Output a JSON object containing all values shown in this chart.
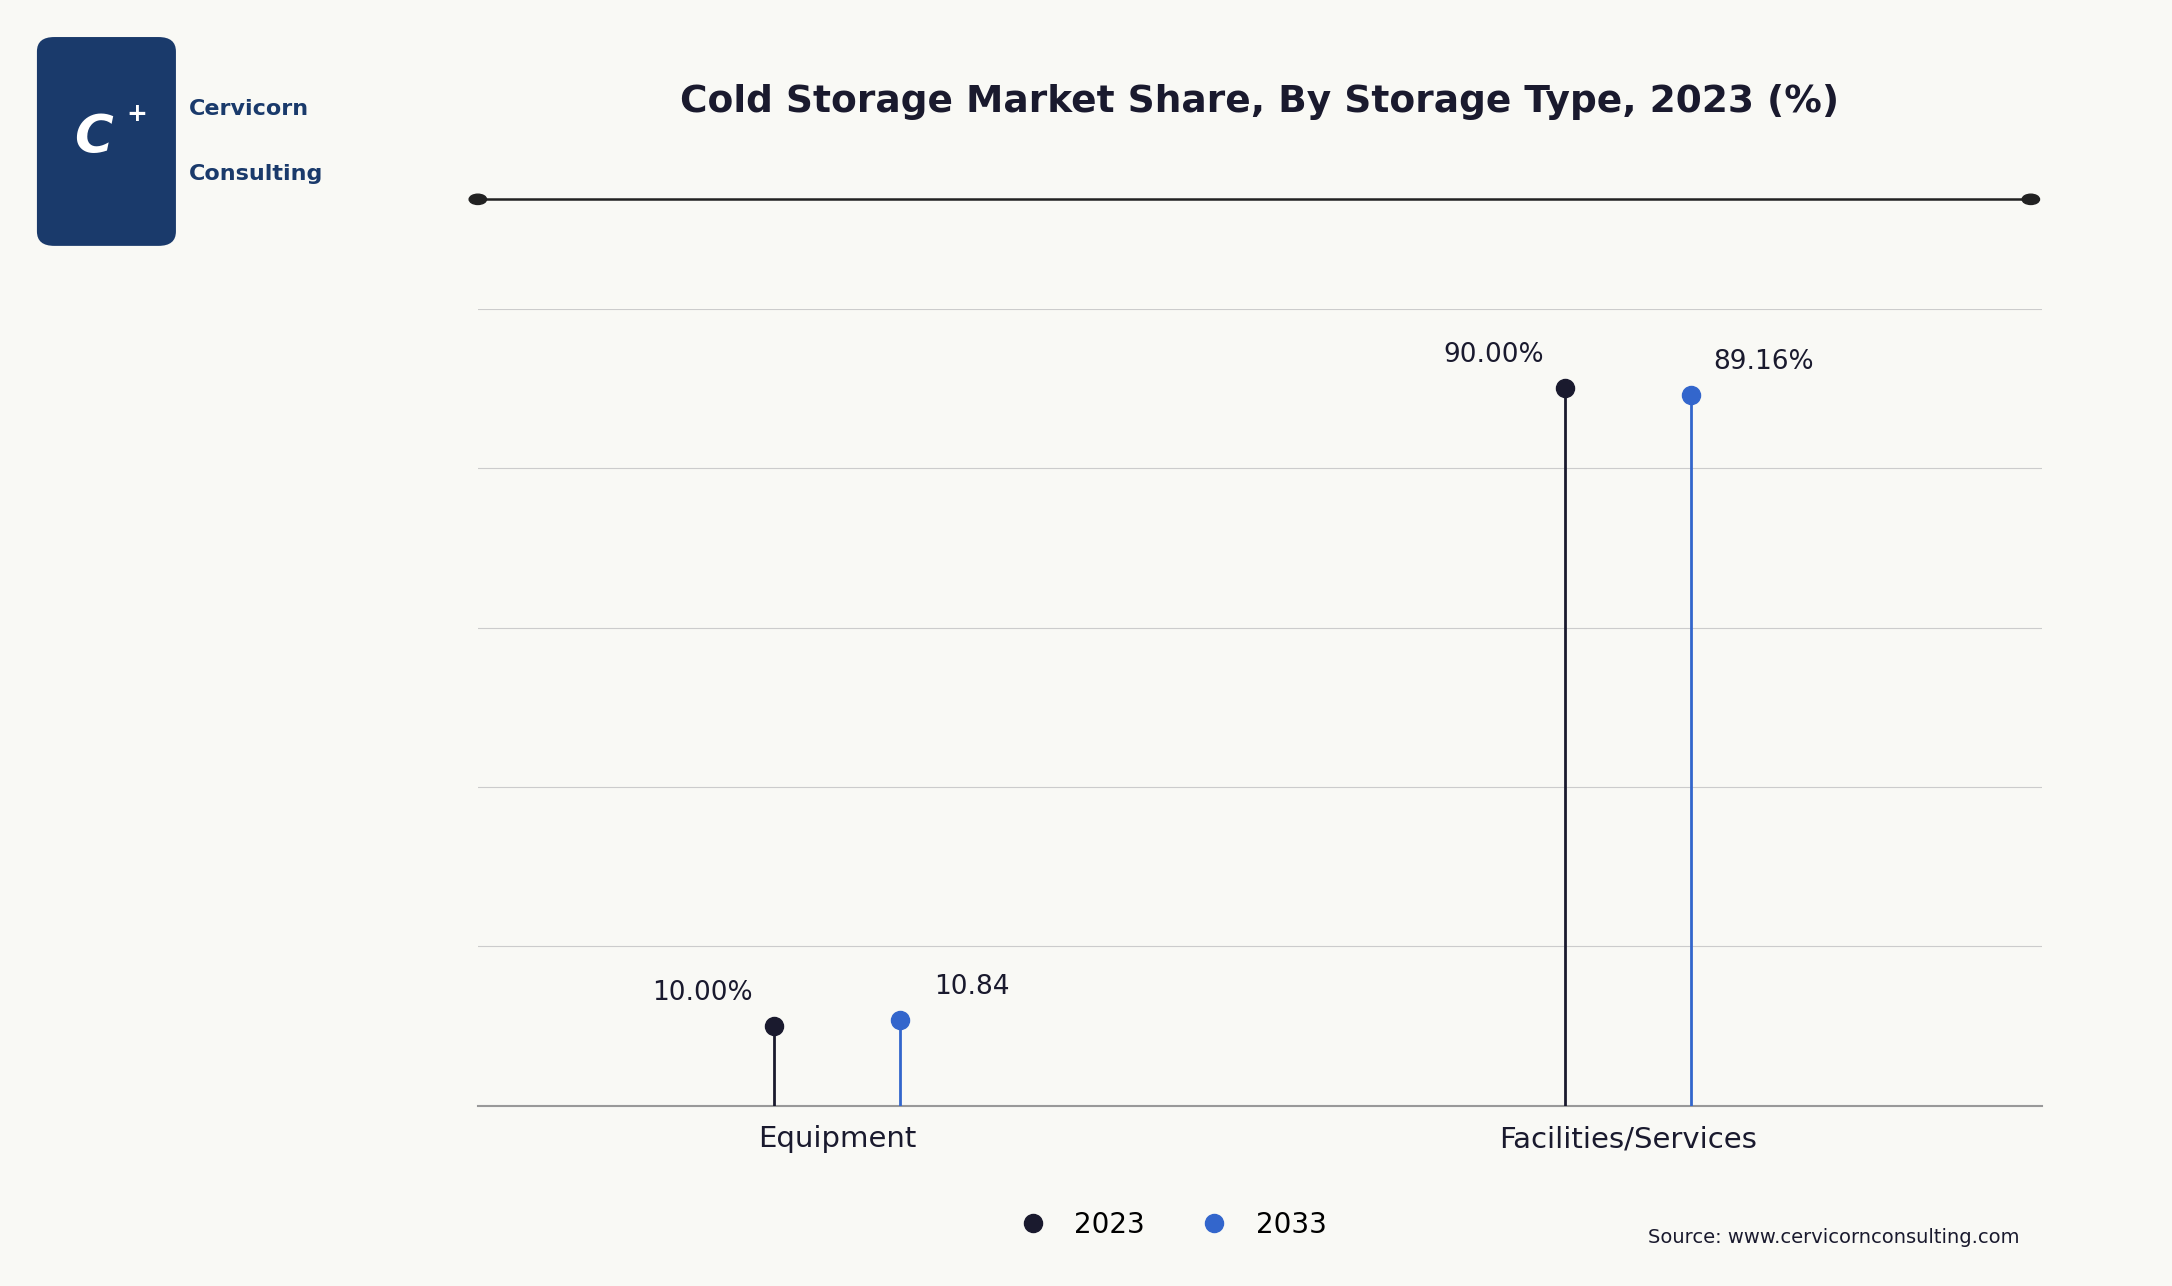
{
  "title": "Cold Storage Market Share, By Storage Type, 2023 (%)",
  "categories": [
    "Equipment",
    "Facilities/Services"
  ],
  "series_2023": [
    10.0,
    90.0
  ],
  "series_2033": [
    10.84,
    89.16
  ],
  "labels_2023": [
    "10.00%",
    "90.00%"
  ],
  "labels_2033": [
    "10.84",
    "89.16%"
  ],
  "color_2023": "#1a1a2e",
  "color_2033": "#3366cc",
  "ylim": [
    0,
    100
  ],
  "yticks": [
    20,
    40,
    60,
    80,
    100
  ],
  "background_color": "#f9f9f5",
  "grid_color": "#cccccc",
  "legend_labels": [
    "2023",
    "2033"
  ],
  "source_text": "Source: www.cervicornconsulting.com",
  "title_color": "#1a1a2e",
  "axis_label_color": "#1a1a2e",
  "marker_size": 13,
  "line_width": 2.0,
  "logo_bg_color": "#1a3a6b",
  "logo_text_color": "#ffffff",
  "brand_name_line1": "Cervicorn",
  "brand_name_line2": "Consulting",
  "brand_color": "#1a3a6b"
}
